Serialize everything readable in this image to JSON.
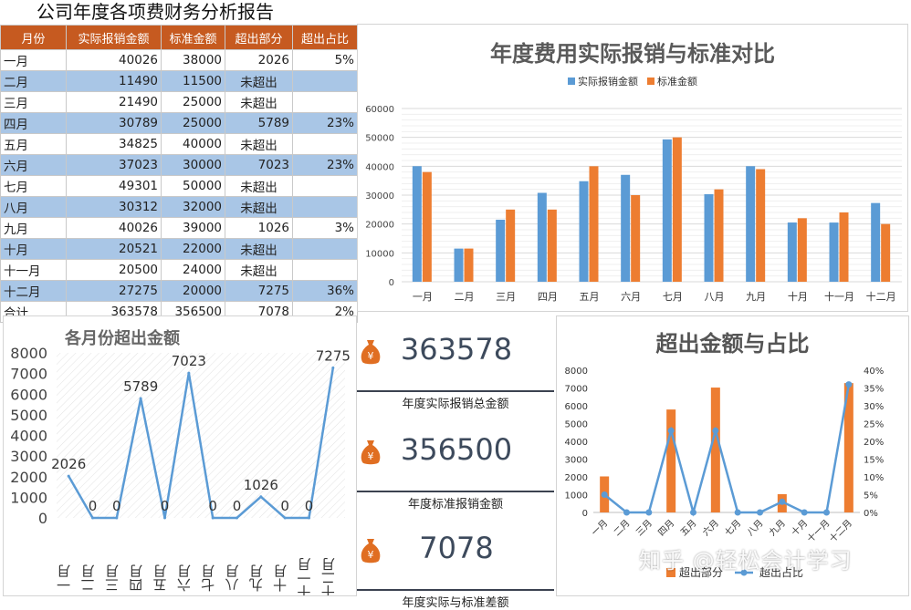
{
  "page_title": "公司年度各项费财务分析报告",
  "table": {
    "headers": [
      "月份",
      "实际报销金额",
      "标准金额",
      "超出部分",
      "超出占比"
    ],
    "rows": [
      [
        "一月",
        "40026",
        "38000",
        "2026",
        "5%"
      ],
      [
        "二月",
        "11490",
        "11500",
        "未超出",
        ""
      ],
      [
        "三月",
        "21490",
        "25000",
        "未超出",
        ""
      ],
      [
        "四月",
        "30789",
        "25000",
        "5789",
        "23%"
      ],
      [
        "五月",
        "34825",
        "40000",
        "未超出",
        ""
      ],
      [
        "六月",
        "37023",
        "30000",
        "7023",
        "23%"
      ],
      [
        "七月",
        "49301",
        "50000",
        "未超出",
        ""
      ],
      [
        "八月",
        "30312",
        "32000",
        "未超出",
        ""
      ],
      [
        "九月",
        "40026",
        "39000",
        "1026",
        "3%"
      ],
      [
        "十月",
        "20521",
        "22000",
        "未超出",
        ""
      ],
      [
        "十一月",
        "20500",
        "24000",
        "未超出",
        ""
      ],
      [
        "十二月",
        "27275",
        "20000",
        "7275",
        "36%"
      ],
      [
        "合计",
        "363578",
        "356500",
        "7078",
        "2%"
      ]
    ]
  },
  "kpis": [
    {
      "value": "363578",
      "label": "年度实际报销总金额"
    },
    {
      "value": "356500",
      "label": "年度标准报销金额"
    },
    {
      "value": "7078",
      "label": "年度实际与标准差额"
    }
  ],
  "icon_symbol": "¥",
  "watermark": "知乎 @轻松会计学习",
  "colors": {
    "blue": "#5b9bd5",
    "orange": "#ed7d31",
    "header": "#c65a20",
    "alt_row": "#a9c6e6"
  },
  "chart_data": [
    {
      "type": "bar",
      "title": "年度费用实际报销与标准对比",
      "categories": [
        "一月",
        "二月",
        "三月",
        "四月",
        "五月",
        "六月",
        "七月",
        "八月",
        "九月",
        "十月",
        "十一月",
        "十二月"
      ],
      "series": [
        {
          "name": "实际报销金额",
          "values": [
            40026,
            11490,
            21490,
            30789,
            34825,
            37023,
            49301,
            30312,
            40026,
            20521,
            20500,
            27275
          ]
        },
        {
          "name": "标准金额",
          "values": [
            38000,
            11500,
            25000,
            25000,
            40000,
            30000,
            50000,
            32000,
            39000,
            22000,
            24000,
            20000
          ]
        }
      ],
      "ylim": [
        0,
        60000
      ],
      "yticks": [
        "0",
        "10000",
        "20000",
        "30000",
        "40000",
        "50000",
        "60000"
      ],
      "legend": "top",
      "grid": true
    },
    {
      "type": "line",
      "title": "各月份超出金额",
      "categories": [
        "一月",
        "二月",
        "三月",
        "四月",
        "五月",
        "六月",
        "七月",
        "八月",
        "九月",
        "十月",
        "十一月",
        "十二月"
      ],
      "values": [
        2026,
        0,
        0,
        5789,
        0,
        7023,
        0,
        0,
        1026,
        0,
        0,
        7275
      ],
      "data_labels": [
        "2026",
        "0",
        "0",
        "5789",
        "0",
        "7023",
        "0",
        "0",
        "1026",
        "0",
        "0",
        "7275"
      ],
      "ylim": [
        0,
        8000
      ],
      "yticks": [
        "0",
        "1000",
        "2000",
        "3000",
        "4000",
        "5000",
        "6000",
        "7000",
        "8000"
      ],
      "grid": false
    },
    {
      "type": "bar",
      "title": "超出金额与占比",
      "categories": [
        "一月",
        "二月",
        "三月",
        "四月",
        "五月",
        "六月",
        "七月",
        "八月",
        "九月",
        "十月",
        "十一月",
        "十二月"
      ],
      "series": [
        {
          "name": "超出部分",
          "values": [
            2026,
            0,
            0,
            5789,
            0,
            7023,
            0,
            0,
            1026,
            0,
            0,
            7275
          ]
        },
        {
          "name": "超出占比",
          "values": [
            0.05,
            0,
            0,
            0.23,
            0,
            0.23,
            0,
            0,
            0.03,
            0,
            0,
            0.36
          ],
          "axis": "secondary",
          "type": "line"
        }
      ],
      "ylim": [
        0,
        8000
      ],
      "yticks": [
        "0",
        "1000",
        "2000",
        "3000",
        "4000",
        "5000",
        "6000",
        "7000",
        "8000"
      ],
      "y2lim": [
        0,
        0.4
      ],
      "y2ticks": [
        "0%",
        "5%",
        "10%",
        "15%",
        "20%",
        "25%",
        "30%",
        "35%",
        "40%"
      ],
      "legend": "bottom",
      "grid": false
    }
  ]
}
